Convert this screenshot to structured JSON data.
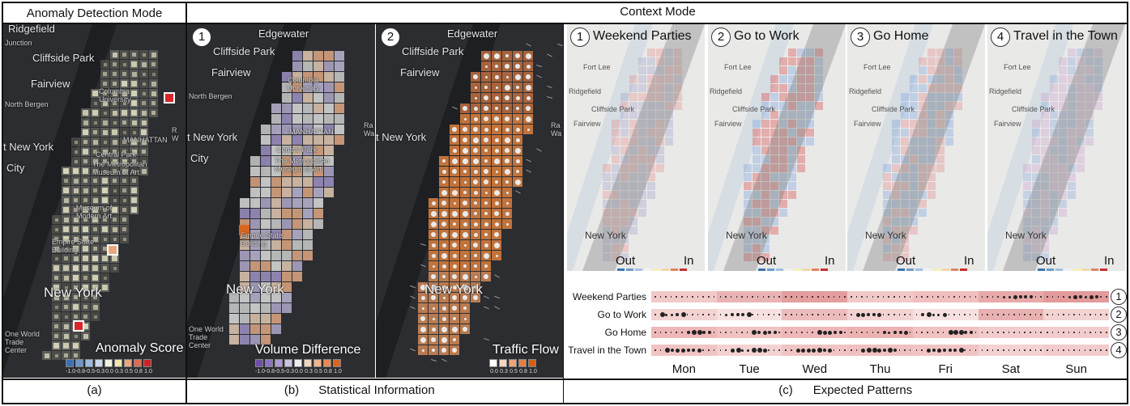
{
  "panels": {
    "anomaly": {
      "title": "Anomaly Detection Mode",
      "caption": "(a)",
      "labels": {
        "ridgefield": "Ridgefield",
        "junction": "Junction",
        "cliffside": "Cliffside Park",
        "fairview": "Fairview",
        "northbergen": "North Bergen",
        "columbia": "Columbia University",
        "manhattan": "MANHATTAN",
        "newyork_w": "t New York",
        "city": "City",
        "centralpark": "Central Park",
        "met": "The Metropolitan Museum of Art",
        "moma": "Museum of Modern Art",
        "empire": "Empire State Building",
        "newyork": "New York",
        "oneworld": "One World Trade Center",
        "randall": "R W"
      },
      "legend": {
        "title": "Anomaly Score",
        "ticks": [
          "-1.0",
          "-0.8",
          "-0.5",
          "-0.3",
          "0.0",
          "0.3",
          "0.5",
          "0.8",
          "1.0"
        ],
        "colors": [
          "#3b6fb6",
          "#6a97cc",
          "#9bbbe0",
          "#c9d9ec",
          "#f1f1e0",
          "#f2e6b0",
          "#e9a77e",
          "#de6c4f",
          "#c8242a"
        ]
      }
    },
    "context": {
      "title": "Context Mode",
      "statistical": {
        "caption_letter": "(b)",
        "caption": "Statistical Information",
        "map1": {
          "badge": "1",
          "legend_title": "Volume Difference",
          "ticks": [
            "-1.0",
            "-0.8",
            "-0.5",
            "-0.3",
            "0.0",
            "0.3",
            "0.5",
            "0.8",
            "1.0"
          ],
          "colors": [
            "#6b4fa8",
            "#8a73bf",
            "#ab9bd3",
            "#cbc3e4",
            "#ededed",
            "#f4d6bf",
            "#f0b48c",
            "#e88a52",
            "#d9661f"
          ],
          "labels": {
            "edgewater": "Edgewater",
            "cliffside": "Cliffside Park",
            "fairview": "Fairview",
            "northbergen": "North Bergen",
            "columbia": "Columbia University",
            "manhattan": "MANHATTAN",
            "newyork_w": "t New York",
            "city": "City",
            "centralpark": "Central Park",
            "met": "The Metropolitan Museum of Art",
            "empire": "Empire State Building",
            "newyork": "New York",
            "oneworld": "One World Trade Center",
            "randall": "Ra Wa"
          }
        },
        "map2": {
          "badge": "2",
          "legend_title": "Traffic Flow",
          "ticks": [
            "0.0",
            "0.3",
            "0.5",
            "0.8",
            "1.0"
          ],
          "colors": [
            "#ffffff",
            "#f3d4bd",
            "#eba57a",
            "#e37f44",
            "#d45f19"
          ],
          "labels": {
            "edgewater": "Edgewater",
            "cliffside": "Cliffside Park",
            "fairview": "Fairview",
            "newyork_w": "t New York",
            "newyork": "New York",
            "randall": "Ra Wa"
          }
        }
      },
      "patterns": {
        "caption_letter": "(c)",
        "caption": "Expected Patterns",
        "maps": [
          {
            "badge": "1",
            "title": "Weekend Parties"
          },
          {
            "badge": "2",
            "title": "Go to Work"
          },
          {
            "badge": "3",
            "title": "Go Home"
          },
          {
            "badge": "4",
            "title": "Travel in the Town"
          }
        ],
        "map_labels": {
          "fortlee": "Fort Lee",
          "ridgefield": "Ridgefield",
          "cliffside": "Cliffside Park",
          "fairview": "Fairview",
          "newyork": "New York"
        },
        "out_label": "Out",
        "in_label": "In",
        "out_colors": [
          "#3b74b3",
          "#6d9dcc",
          "#a3c2e0"
        ],
        "in_colors": [
          "#f6f0b8",
          "#f2d6a4",
          "#e5835f",
          "#c8312d"
        ],
        "timeline": {
          "rows": [
            {
              "label": "Weekend Parties",
              "num": "1"
            },
            {
              "label": "Go to Work",
              "num": "2"
            },
            {
              "label": "Go Home",
              "num": "3"
            },
            {
              "label": "Travel in the Town",
              "num": "4"
            }
          ],
          "days": [
            "Mon",
            "Tue",
            "Wed",
            "Thu",
            "Fri",
            "Sat",
            "Sun"
          ]
        }
      }
    }
  }
}
